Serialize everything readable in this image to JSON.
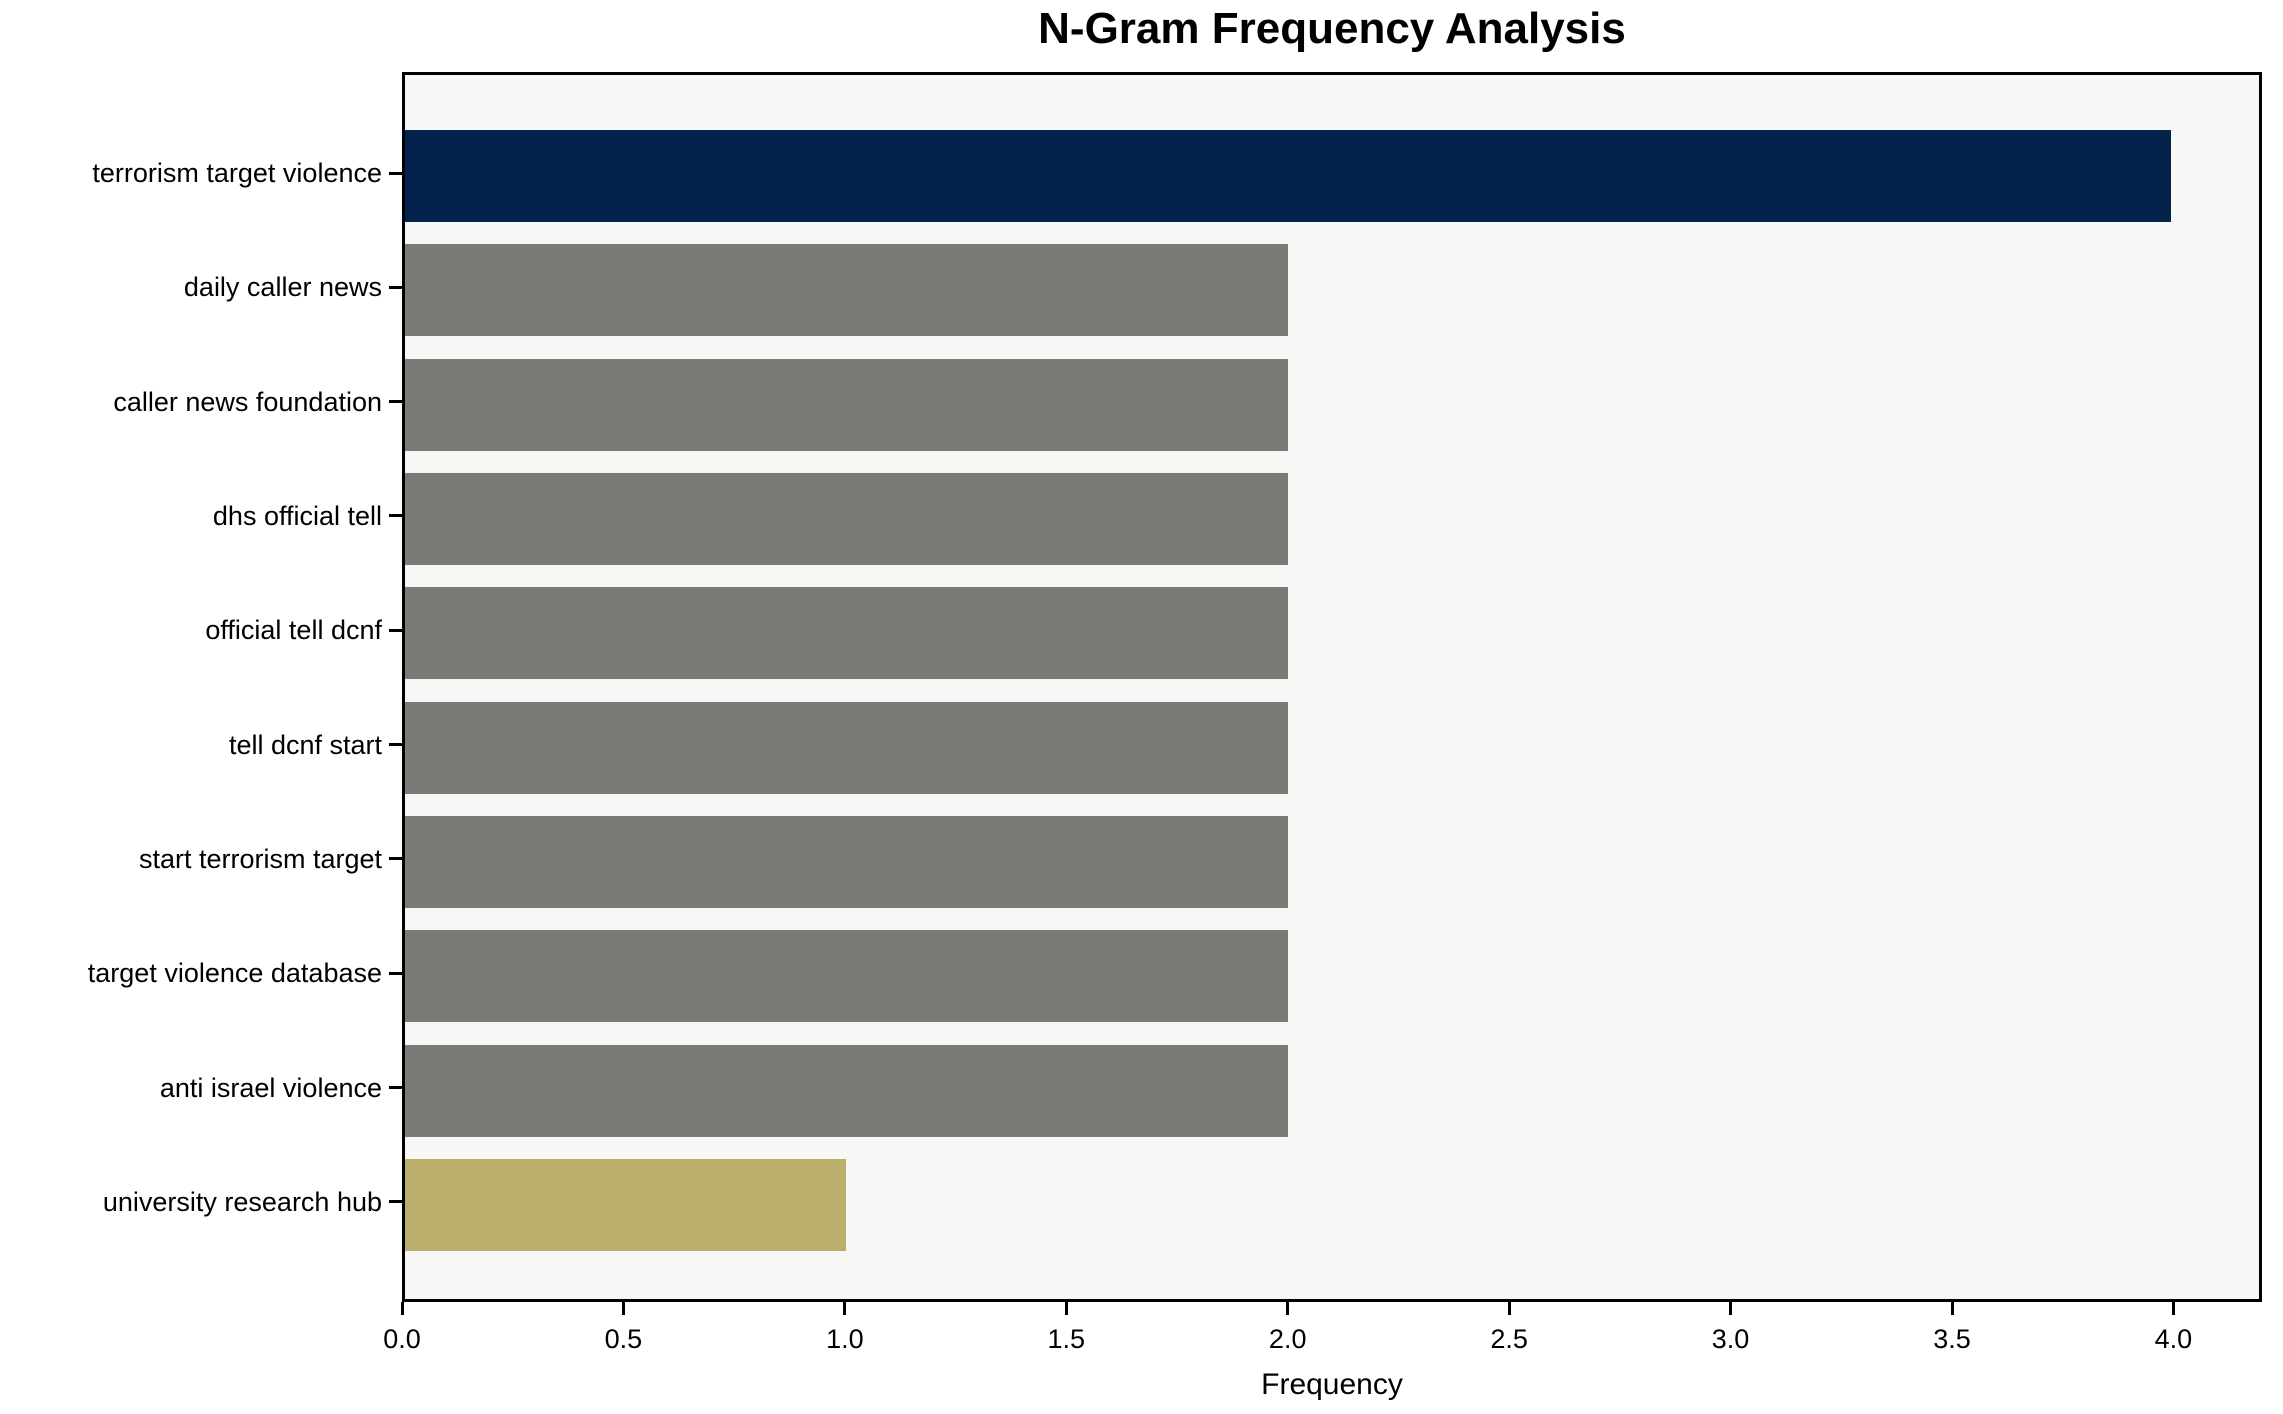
{
  "chart_data": {
    "type": "bar",
    "orientation": "horizontal",
    "title": "N-Gram Frequency Analysis",
    "xlabel": "Frequency",
    "ylabel": "",
    "categories": [
      "terrorism target violence",
      "daily caller news",
      "caller news foundation",
      "dhs official tell",
      "official tell dcnf",
      "tell dcnf start",
      "start terrorism target",
      "target violence database",
      "anti israel violence",
      "university research hub"
    ],
    "values": [
      4,
      2,
      2,
      2,
      2,
      2,
      2,
      2,
      2,
      1
    ],
    "bar_colors": [
      "#04224c",
      "#7a7a76",
      "#7a7a76",
      "#7a7a76",
      "#7a7a76",
      "#7a7a76",
      "#7a7a76",
      "#7a7a76",
      "#7a7a76",
      "#bcae6b"
    ],
    "xlim": [
      0,
      4.2
    ],
    "xticks": [
      0,
      0.5,
      1,
      1.5,
      2,
      2.5,
      3,
      3.5,
      4
    ],
    "xtick_labels": [
      "0.0",
      "0.5",
      "1.0",
      "1.5",
      "2.0",
      "2.5",
      "3.0",
      "3.5",
      "4.0"
    ],
    "grid": false,
    "legend_position": "none",
    "plot_background": "#f7f7f6",
    "figure_background": "#ffffff",
    "spine_color": "#000000"
  }
}
